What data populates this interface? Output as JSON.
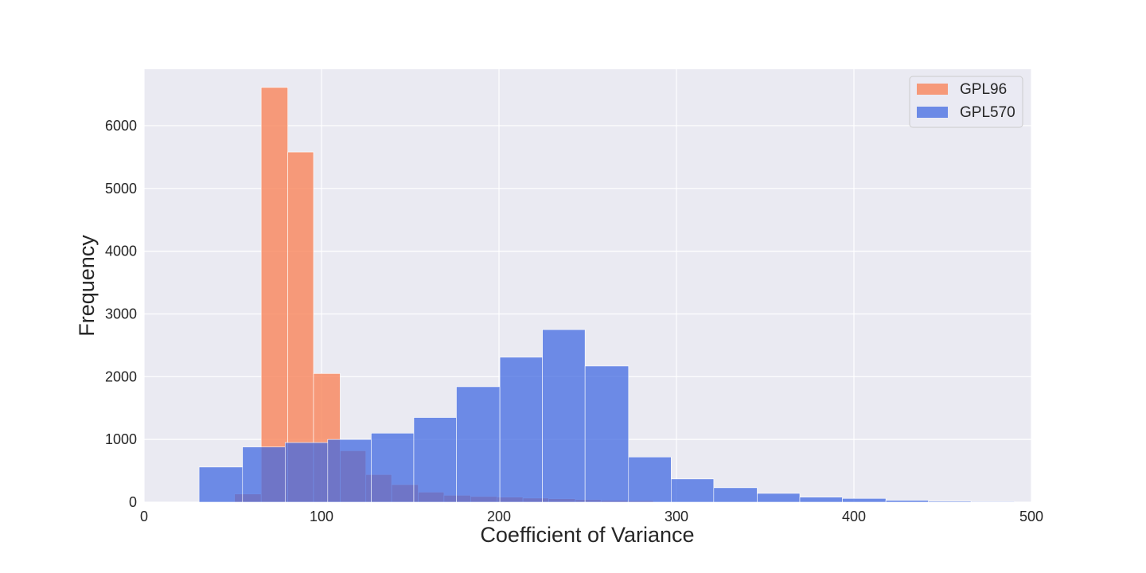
{
  "chart_data": {
    "type": "bar",
    "subtype": "histogram",
    "title": "",
    "xlabel": "Coefficient of Variance",
    "ylabel": "Frequency",
    "xlim": [
      0,
      500
    ],
    "ylim": [
      0,
      6900
    ],
    "xticks": [
      0,
      100,
      200,
      300,
      400,
      500
    ],
    "yticks": [
      0,
      1000,
      2000,
      3000,
      4000,
      5000,
      6000
    ],
    "grid": true,
    "legend_position": "top-right",
    "series": [
      {
        "name": "GPL96",
        "color": "#f9845a",
        "opacity": 0.8,
        "bins": [
          {
            "x0": 51,
            "x1": 66,
            "value": 130
          },
          {
            "x0": 66,
            "x1": 81,
            "value": 6610
          },
          {
            "x0": 81,
            "x1": 95.5,
            "value": 5580
          },
          {
            "x0": 95.5,
            "x1": 110.5,
            "value": 2050
          },
          {
            "x0": 110.5,
            "x1": 125,
            "value": 820
          },
          {
            "x0": 125,
            "x1": 139.5,
            "value": 440
          },
          {
            "x0": 139.5,
            "x1": 154.5,
            "value": 280
          },
          {
            "x0": 154.5,
            "x1": 169,
            "value": 160
          },
          {
            "x0": 169,
            "x1": 184,
            "value": 110
          },
          {
            "x0": 184,
            "x1": 199,
            "value": 90
          },
          {
            "x0": 199,
            "x1": 213.5,
            "value": 80
          },
          {
            "x0": 213.5,
            "x1": 228,
            "value": 65
          },
          {
            "x0": 228,
            "x1": 243,
            "value": 55
          },
          {
            "x0": 243,
            "x1": 257.5,
            "value": 40
          },
          {
            "x0": 257.5,
            "x1": 272.5,
            "value": 30
          },
          {
            "x0": 272.5,
            "x1": 287,
            "value": 25
          }
        ]
      },
      {
        "name": "GPL570",
        "color": "#4169e1",
        "opacity": 0.75,
        "bins": [
          {
            "x0": 31,
            "x1": 55.5,
            "value": 560
          },
          {
            "x0": 55.5,
            "x1": 79.5,
            "value": 880
          },
          {
            "x0": 79.5,
            "x1": 103.5,
            "value": 950
          },
          {
            "x0": 103.5,
            "x1": 128,
            "value": 1000
          },
          {
            "x0": 128,
            "x1": 152,
            "value": 1100
          },
          {
            "x0": 152,
            "x1": 176,
            "value": 1350
          },
          {
            "x0": 176,
            "x1": 200.5,
            "value": 1840
          },
          {
            "x0": 200.5,
            "x1": 224.5,
            "value": 2310
          },
          {
            "x0": 224.5,
            "x1": 248.5,
            "value": 2750
          },
          {
            "x0": 248.5,
            "x1": 273,
            "value": 2170
          },
          {
            "x0": 273,
            "x1": 297,
            "value": 720
          },
          {
            "x0": 297,
            "x1": 321,
            "value": 370
          },
          {
            "x0": 321,
            "x1": 345.5,
            "value": 230
          },
          {
            "x0": 345.5,
            "x1": 369.5,
            "value": 140
          },
          {
            "x0": 369.5,
            "x1": 393.5,
            "value": 80
          },
          {
            "x0": 393.5,
            "x1": 418,
            "value": 60
          },
          {
            "x0": 418,
            "x1": 442,
            "value": 30
          },
          {
            "x0": 442,
            "x1": 466,
            "value": 15
          },
          {
            "x0": 466,
            "x1": 490.5,
            "value": 10
          }
        ]
      }
    ]
  }
}
